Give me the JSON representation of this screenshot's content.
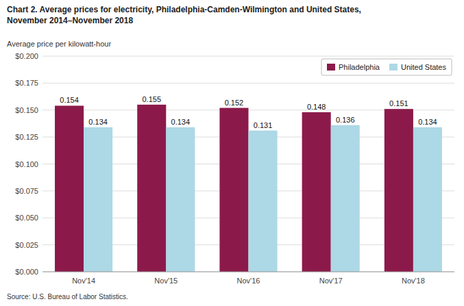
{
  "chart_data": {
    "type": "bar",
    "title": "Chart 2. Average prices for electricity, Philadelphia-Camden-Wilmington and United States,\nNovember 2014–November 2018",
    "y_label": "Average price per kilowatt-hour",
    "annotations": [
      "Source: U.S. Bureau of Labor Statistics."
    ],
    "categories": [
      "Nov'14",
      "Nov'15",
      "Nov'16",
      "Nov'17",
      "Nov'18"
    ],
    "series": [
      {
        "name": "Philadelphia",
        "color": "#8B1A4A",
        "values": [
          0.154,
          0.155,
          0.152,
          0.148,
          0.151
        ]
      },
      {
        "name": "United States",
        "color": "#ADD8E6",
        "values": [
          0.134,
          0.134,
          0.131,
          0.136,
          0.134
        ]
      }
    ],
    "ylim": [
      0,
      0.2
    ],
    "yticks": [
      {
        "value": 0.0,
        "label": "$0.000"
      },
      {
        "value": 0.025,
        "label": "$0.025"
      },
      {
        "value": 0.05,
        "label": "$0.050"
      },
      {
        "value": 0.075,
        "label": "$0.075"
      },
      {
        "value": 0.1,
        "label": "$0.100"
      },
      {
        "value": 0.125,
        "label": "$0.125"
      },
      {
        "value": 0.15,
        "label": "$0.150"
      },
      {
        "value": 0.175,
        "label": "$0.175"
      },
      {
        "value": 0.2,
        "label": "$0.200"
      }
    ],
    "grid": true,
    "legend": "upper right",
    "data_labels": true
  }
}
